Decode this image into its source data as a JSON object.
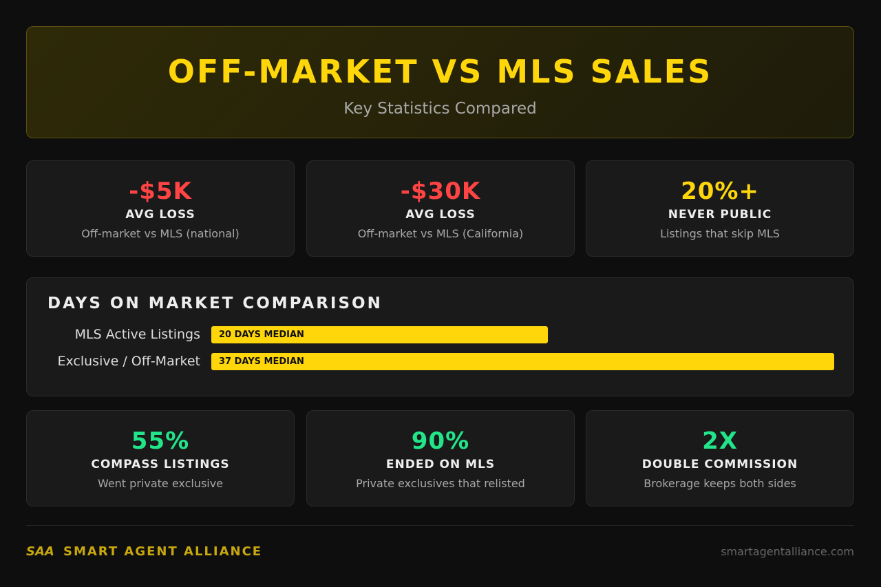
{
  "header": {
    "title": "OFF-MARKET VS MLS SALES",
    "subtitle": "Key Statistics Compared"
  },
  "stats": [
    {
      "value": "-$5K",
      "label": "AVG LOSS",
      "desc": "Off-market vs MLS (national)",
      "color": "#ff4444"
    },
    {
      "value": "-$30K",
      "label": "AVG LOSS",
      "desc": "Off-market vs MLS (California)",
      "color": "#ff4444"
    },
    {
      "value": "20%+",
      "label": "NEVER PUBLIC",
      "desc": "Listings that skip MLS",
      "color": "#ffd60a"
    },
    {
      "value": "55%",
      "label": "COMPASS LISTINGS",
      "desc": "Went private exclusive",
      "color": "#22e58a"
    },
    {
      "value": "90%",
      "label": "ENDED ON MLS",
      "desc": "Private exclusives that relisted",
      "color": "#22e58a"
    },
    {
      "value": "2X",
      "label": "DOUBLE COMMISSION",
      "desc": "Brokerage keeps both sides",
      "color": "#22e58a"
    }
  ],
  "chart_data": {
    "type": "bar",
    "title": "DAYS ON MARKET COMPARISON",
    "categories": [
      "MLS Active Listings",
      "Exclusive / Off-Market"
    ],
    "values": [
      20,
      37
    ],
    "value_labels": [
      "20 DAYS MEDIAN",
      "37 DAYS MEDIAN"
    ],
    "color": "#ffd60a"
  },
  "footer": {
    "logo": "SAA",
    "brand": "SMART AGENT ALLIANCE",
    "url": "smartagentalliance.com"
  }
}
